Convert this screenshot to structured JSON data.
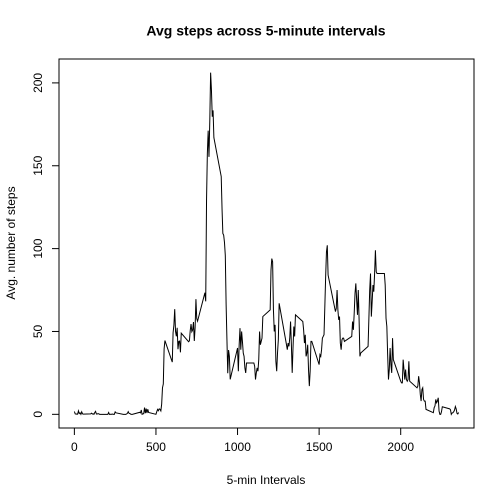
{
  "chart_data": {
    "type": "line",
    "title": "Avg steps across 5-minute intervals",
    "xlabel": "5-min Intervals",
    "ylabel": "Avg. number of steps",
    "color": "#000000",
    "x": [
      0,
      5,
      10,
      15,
      20,
      25,
      30,
      35,
      40,
      45,
      50,
      55,
      100,
      105,
      110,
      115,
      120,
      125,
      130,
      135,
      140,
      145,
      150,
      155,
      200,
      205,
      210,
      215,
      220,
      225,
      230,
      235,
      240,
      245,
      250,
      255,
      300,
      305,
      310,
      315,
      320,
      325,
      330,
      335,
      340,
      345,
      350,
      355,
      400,
      405,
      410,
      415,
      420,
      425,
      430,
      435,
      440,
      445,
      450,
      455,
      500,
      505,
      510,
      515,
      520,
      525,
      530,
      535,
      540,
      545,
      550,
      555,
      600,
      605,
      610,
      615,
      620,
      625,
      630,
      635,
      640,
      645,
      650,
      655,
      700,
      705,
      710,
      715,
      720,
      725,
      730,
      735,
      740,
      745,
      750,
      755,
      800,
      805,
      810,
      815,
      820,
      825,
      830,
      835,
      840,
      845,
      850,
      855,
      900,
      905,
      910,
      915,
      920,
      925,
      930,
      935,
      940,
      945,
      950,
      955,
      1000,
      1005,
      1010,
      1015,
      1020,
      1025,
      1030,
      1035,
      1040,
      1045,
      1050,
      1055,
      1100,
      1105,
      1110,
      1115,
      1120,
      1125,
      1130,
      1135,
      1140,
      1145,
      1150,
      1155,
      1200,
      1205,
      1210,
      1215,
      1220,
      1225,
      1230,
      1235,
      1240,
      1245,
      1250,
      1255,
      1300,
      1305,
      1310,
      1315,
      1320,
      1325,
      1330,
      1335,
      1340,
      1345,
      1350,
      1355,
      1400,
      1405,
      1410,
      1415,
      1420,
      1425,
      1430,
      1435,
      1440,
      1445,
      1450,
      1455,
      1500,
      1505,
      1510,
      1515,
      1520,
      1525,
      1530,
      1535,
      1540,
      1545,
      1550,
      1555,
      1600,
      1605,
      1610,
      1615,
      1620,
      1625,
      1630,
      1635,
      1640,
      1645,
      1650,
      1655,
      1700,
      1705,
      1710,
      1715,
      1720,
      1725,
      1730,
      1735,
      1740,
      1745,
      1750,
      1755,
      1800,
      1805,
      1810,
      1815,
      1820,
      1825,
      1830,
      1835,
      1840,
      1845,
      1850,
      1855,
      1900,
      1905,
      1910,
      1915,
      1920,
      1925,
      1930,
      1935,
      1940,
      1945,
      1950,
      1955,
      2000,
      2005,
      2010,
      2015,
      2020,
      2025,
      2030,
      2035,
      2040,
      2045,
      2050,
      2055,
      2100,
      2105,
      2110,
      2115,
      2120,
      2125,
      2130,
      2135,
      2140,
      2145,
      2150,
      2155,
      2200,
      2205,
      2210,
      2215,
      2220,
      2225,
      2230,
      2235,
      2240,
      2245,
      2250,
      2255,
      2300,
      2305,
      2310,
      2315,
      2320,
      2325,
      2330,
      2335,
      2340,
      2345,
      2350,
      2355
    ],
    "values": [
      1.7,
      0.3,
      0.1,
      0.2,
      0.1,
      2.1,
      0.5,
      0.9,
      0,
      1.5,
      0.3,
      0.1,
      0.3,
      0.7,
      0.2,
      0.3,
      0,
      1.1,
      1.8,
      0.2,
      0.2,
      0.4,
      0.3,
      0,
      0,
      0,
      1.1,
      0,
      0,
      0.1,
      0,
      0.2,
      0,
      0,
      1.5,
      0.9,
      0,
      0,
      0,
      0,
      0.2,
      0.6,
      1.6,
      0.6,
      0.5,
      0.1,
      0,
      0,
      1.2,
      0.9,
      2.6,
      0,
      0.3,
      0.4,
      4.1,
      0.7,
      3.5,
      0.8,
      3.1,
      1.1,
      0,
      1.6,
      3,
      2.2,
      3.3,
      3,
      2.1,
      6.1,
      16,
      18.3,
      39.5,
      44.5,
      31.5,
      49.3,
      53.8,
      63.5,
      50,
      47.1,
      52.2,
      39.3,
      44,
      44.2,
      37.4,
      49,
      43.8,
      44.4,
      50.5,
      54.5,
      49.9,
      51,
      55.7,
      44.3,
      52.3,
      69.5,
      57.8,
      56.2,
      73.4,
      68.2,
      129.4,
      157.5,
      171.2,
      155.4,
      177.3,
      206.2,
      195.9,
      179.6,
      183.4,
      167,
      143.5,
      124,
      109.1,
      108.1,
      103.7,
      95.9,
      66.2,
      45.2,
      24.8,
      38.8,
      35,
      21.1,
      40,
      26,
      42,
      52,
      39,
      50,
      44,
      37,
      35,
      28,
      25,
      31,
      31,
      29,
      21,
      25,
      28,
      26,
      33,
      50,
      42,
      44,
      46,
      59,
      63,
      87,
      94,
      92,
      63,
      50,
      54,
      32,
      26,
      37,
      45,
      67,
      42,
      39,
      43,
      41,
      46,
      56,
      42,
      25,
      40,
      53,
      47,
      60,
      56,
      51,
      43,
      48,
      35,
      37,
      42,
      27,
      17,
      26,
      44,
      44,
      30,
      36,
      35,
      39,
      46,
      47,
      48,
      65,
      83,
      98,
      102,
      84,
      62,
      64,
      75,
      63,
      57,
      59,
      43,
      39,
      45,
      46,
      46,
      44,
      47,
      56,
      51,
      61,
      73,
      79,
      69,
      60,
      75,
      57,
      35,
      37,
      41,
      58,
      75,
      85,
      59,
      68,
      78,
      74,
      85,
      99,
      86,
      85,
      85,
      78,
      58,
      53,
      36,
      21,
      27,
      40,
      30,
      25,
      46,
      33,
      20,
      19,
      19,
      33,
      27,
      21,
      27,
      21,
      20,
      21,
      32,
      20,
      16,
      17,
      23,
      19,
      12,
      8,
      15,
      16,
      9,
      8,
      8,
      3,
      1,
      4,
      5,
      9,
      7,
      8,
      10,
      2,
      0,
      0,
      1.6,
      4.6,
      3.3,
      2.8,
      0,
      0.8,
      1,
      1.6,
      2.6,
      4.7,
      3.3,
      0.6,
      0.2,
      1.1
    ],
    "xlim": [
      -94.2,
      2449.2
    ],
    "xticks": [
      0,
      500,
      1000,
      1500,
      2000
    ],
    "ylim": [
      -8.25,
      214.42
    ],
    "yticks": [
      0,
      50,
      100,
      150,
      200
    ]
  }
}
